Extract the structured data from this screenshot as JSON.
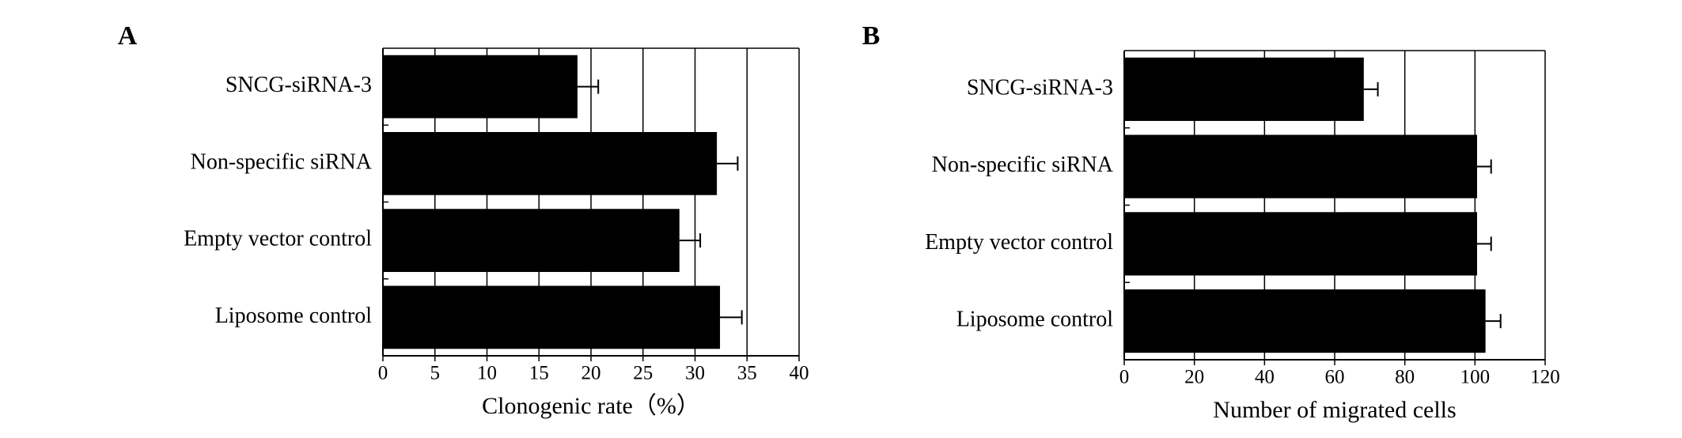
{
  "chart_data": [
    {
      "type": "bar",
      "orientation": "horizontal",
      "panel_label": "A",
      "categories": [
        "SNCG-siRNA-3",
        "Non-specific siRNA",
        "Empty vector control",
        "Liposome control"
      ],
      "values": [
        18.7,
        32.1,
        28.5,
        32.4
      ],
      "errors": [
        2.0,
        2.0,
        2.0,
        2.1
      ],
      "color": "#000000",
      "xlabel": "Clonogenic rate（%）",
      "xlim": [
        0,
        40
      ],
      "xticks": [
        0,
        5,
        10,
        15,
        20,
        25,
        30,
        35,
        40
      ],
      "grid": true
    },
    {
      "type": "bar",
      "orientation": "horizontal",
      "panel_label": "B",
      "categories": [
        "SNCG-siRNA-3",
        "Non-specific siRNA",
        "Empty vector control",
        "Liposome control"
      ],
      "values": [
        68.3,
        100.6,
        100.6,
        103
      ],
      "errors": [
        4,
        4,
        4,
        4.3
      ],
      "color": "#000000",
      "xlabel": "Number of migrated cells",
      "xlim": [
        0,
        120
      ],
      "xticks": [
        0,
        20,
        40,
        60,
        80,
        100,
        120
      ],
      "grid": true
    }
  ]
}
